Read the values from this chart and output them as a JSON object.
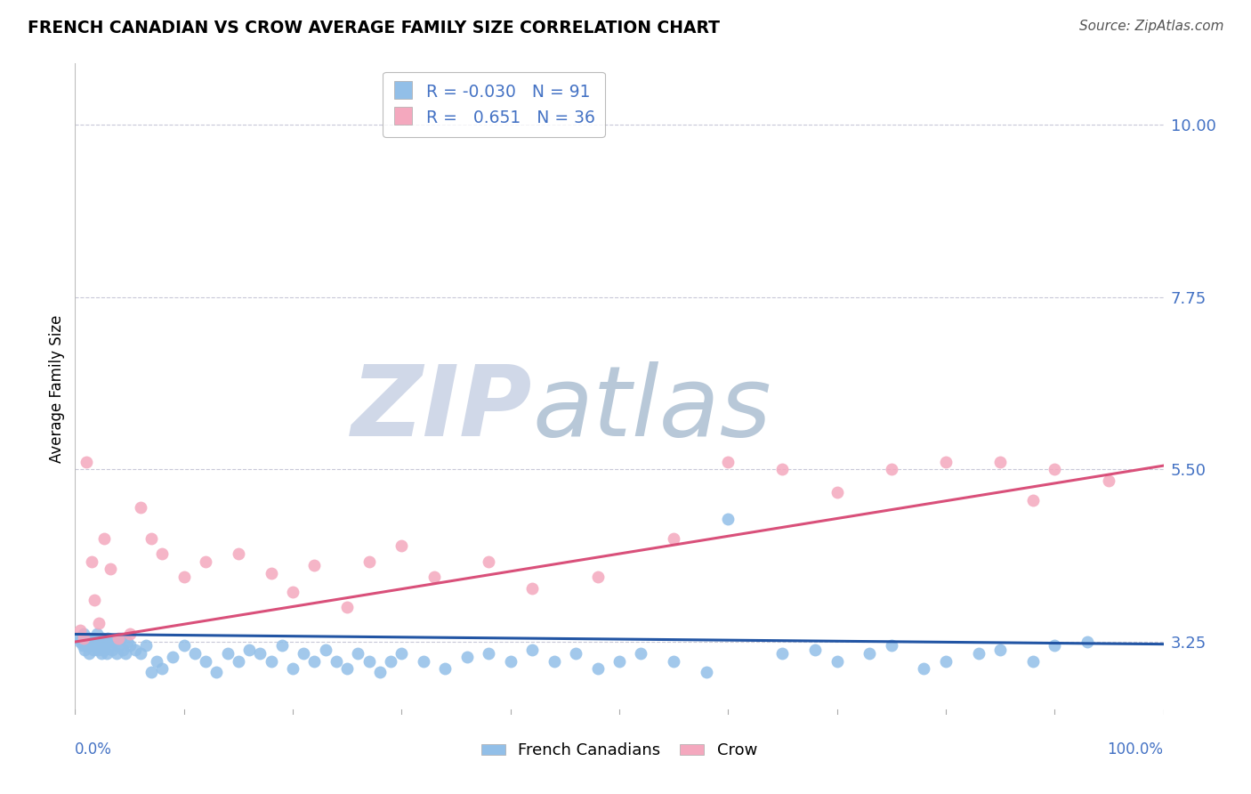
{
  "title": "FRENCH CANADIAN VS CROW AVERAGE FAMILY SIZE CORRELATION CHART",
  "source": "Source: ZipAtlas.com",
  "ylabel": "Average Family Size",
  "yticks": [
    3.25,
    5.5,
    7.75,
    10.0
  ],
  "xlim": [
    0.0,
    1.0
  ],
  "ylim": [
    2.3,
    10.8
  ],
  "legend_r": [
    -0.03,
    0.651
  ],
  "legend_n": [
    91,
    36
  ],
  "legend_labels": [
    "French Canadians",
    "Crow"
  ],
  "blue_color": "#92bfe8",
  "pink_color": "#f4a8be",
  "blue_line_color": "#2255a4",
  "pink_line_color": "#d9507a",
  "blue_scatter_x": [
    0.003,
    0.005,
    0.006,
    0.007,
    0.008,
    0.009,
    0.01,
    0.011,
    0.012,
    0.013,
    0.014,
    0.015,
    0.016,
    0.017,
    0.018,
    0.019,
    0.02,
    0.021,
    0.022,
    0.023,
    0.024,
    0.025,
    0.026,
    0.027,
    0.028,
    0.029,
    0.03,
    0.032,
    0.034,
    0.036,
    0.038,
    0.04,
    0.042,
    0.044,
    0.046,
    0.048,
    0.05,
    0.055,
    0.06,
    0.065,
    0.07,
    0.075,
    0.08,
    0.09,
    0.1,
    0.11,
    0.12,
    0.13,
    0.14,
    0.15,
    0.16,
    0.17,
    0.18,
    0.19,
    0.2,
    0.21,
    0.22,
    0.23,
    0.24,
    0.25,
    0.26,
    0.27,
    0.28,
    0.29,
    0.3,
    0.32,
    0.34,
    0.36,
    0.38,
    0.4,
    0.42,
    0.44,
    0.46,
    0.48,
    0.5,
    0.52,
    0.55,
    0.58,
    0.6,
    0.65,
    0.68,
    0.7,
    0.73,
    0.75,
    0.78,
    0.8,
    0.83,
    0.85,
    0.88,
    0.9,
    0.93
  ],
  "blue_scatter_y": [
    3.3,
    3.25,
    3.3,
    3.2,
    3.35,
    3.15,
    3.3,
    3.2,
    3.25,
    3.1,
    3.3,
    3.2,
    3.25,
    3.15,
    3.3,
    3.2,
    3.35,
    3.15,
    3.2,
    3.25,
    3.1,
    3.3,
    3.2,
    3.15,
    3.25,
    3.1,
    3.3,
    3.2,
    3.15,
    3.25,
    3.1,
    3.2,
    3.3,
    3.15,
    3.1,
    3.25,
    3.2,
    3.15,
    3.1,
    3.2,
    2.85,
    3.0,
    2.9,
    3.05,
    3.2,
    3.1,
    3.0,
    2.85,
    3.1,
    3.0,
    3.15,
    3.1,
    3.0,
    3.2,
    2.9,
    3.1,
    3.0,
    3.15,
    3.0,
    2.9,
    3.1,
    3.0,
    2.85,
    3.0,
    3.1,
    3.0,
    2.9,
    3.05,
    3.1,
    3.0,
    3.15,
    3.0,
    3.1,
    2.9,
    3.0,
    3.1,
    3.0,
    2.85,
    4.85,
    3.1,
    3.15,
    3.0,
    3.1,
    3.2,
    2.9,
    3.0,
    3.1,
    3.15,
    3.0,
    3.2,
    3.25
  ],
  "pink_scatter_x": [
    0.005,
    0.008,
    0.01,
    0.015,
    0.018,
    0.022,
    0.027,
    0.032,
    0.04,
    0.05,
    0.06,
    0.07,
    0.08,
    0.1,
    0.12,
    0.15,
    0.18,
    0.2,
    0.22,
    0.25,
    0.27,
    0.3,
    0.33,
    0.38,
    0.42,
    0.48,
    0.55,
    0.6,
    0.65,
    0.7,
    0.75,
    0.8,
    0.85,
    0.88,
    0.9,
    0.95
  ],
  "pink_scatter_y": [
    3.4,
    3.3,
    5.6,
    4.3,
    3.8,
    3.5,
    4.6,
    4.2,
    3.3,
    3.35,
    5.0,
    4.6,
    4.4,
    4.1,
    4.3,
    4.4,
    4.15,
    3.9,
    4.25,
    3.7,
    4.3,
    4.5,
    4.1,
    4.3,
    3.95,
    4.1,
    4.6,
    5.6,
    5.5,
    5.2,
    5.5,
    5.6,
    5.6,
    5.1,
    5.5,
    5.35
  ],
  "blue_trend_x": [
    0.0,
    1.0
  ],
  "blue_trend_y": [
    3.35,
    3.22
  ],
  "pink_trend_x": [
    0.0,
    1.0
  ],
  "pink_trend_y": [
    3.25,
    5.55
  ],
  "grid_color": "#c8c8d8",
  "bg_color": "#ffffff",
  "watermark_zip": "ZIP",
  "watermark_atlas": "atlas",
  "watermark_color_zip": "#d0d8e8",
  "watermark_color_atlas": "#b8c8d8"
}
